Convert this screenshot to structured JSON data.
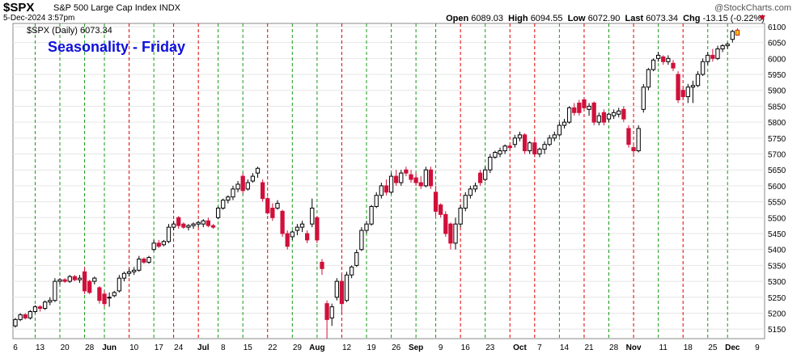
{
  "header": {
    "symbol": "$SPX",
    "name": "S&P 500 Large Cap Index",
    "exchange": "INDX",
    "date": "5-Dec-2024 3:57pm",
    "open_label": "Open",
    "open": "6089.03",
    "high_label": "High",
    "high": "6094.55",
    "low_label": "Low",
    "low": "6072.90",
    "last_label": "Last",
    "last": "6073.34",
    "chg_label": "Chg",
    "chg": "-13.15 (-0.22%)",
    "watermark": "@StockCharts.com"
  },
  "legend": {
    "text": "$SPX (Daily) 6073.34"
  },
  "annotation": "Seasonality - Friday",
  "colors": {
    "up": "#ffffff",
    "down": "#d0103a",
    "outline": "#000000",
    "green_line": "#1a9a1a",
    "red_line": "#e00000",
    "annotation": "#1010dd",
    "grid": "#e6e6e6"
  },
  "chart_data": {
    "type": "candlestick",
    "title": "Seasonality - Friday",
    "y_axis": {
      "side": "right",
      "range": [
        5120,
        6110
      ],
      "ticks": [
        5150,
        5200,
        5250,
        5300,
        5350,
        5400,
        5450,
        5500,
        5550,
        5600,
        5650,
        5700,
        5750,
        5800,
        5850,
        5900,
        5950,
        6000,
        6050,
        6100
      ]
    },
    "x_labels": [
      {
        "label": "6",
        "idx": 0
      },
      {
        "label": "13",
        "idx": 5
      },
      {
        "label": "20",
        "idx": 10
      },
      {
        "label": "28",
        "idx": 15
      },
      {
        "label": "Jun",
        "idx": 19
      },
      {
        "label": "10",
        "idx": 24
      },
      {
        "label": "17",
        "idx": 29
      },
      {
        "label": "24",
        "idx": 33
      },
      {
        "label": "Jul",
        "idx": 38
      },
      {
        "label": "8",
        "idx": 42
      },
      {
        "label": "15",
        "idx": 47
      },
      {
        "label": "22",
        "idx": 52
      },
      {
        "label": "29",
        "idx": 57
      },
      {
        "label": "Aug",
        "idx": 61
      },
      {
        "label": "12",
        "idx": 67
      },
      {
        "label": "19",
        "idx": 72
      },
      {
        "label": "26",
        "idx": 77
      },
      {
        "label": "Sep",
        "idx": 81
      },
      {
        "label": "9",
        "idx": 86
      },
      {
        "label": "16",
        "idx": 91
      },
      {
        "label": "23",
        "idx": 96
      },
      {
        "label": "Oct",
        "idx": 102
      },
      {
        "label": "7",
        "idx": 106
      },
      {
        "label": "14",
        "idx": 111
      },
      {
        "label": "21",
        "idx": 116
      },
      {
        "label": "28",
        "idx": 121
      },
      {
        "label": "Nov",
        "idx": 125
      },
      {
        "label": "11",
        "idx": 131
      },
      {
        "label": "18",
        "idx": 136
      },
      {
        "label": "25",
        "idx": 141
      },
      {
        "label": "Dec",
        "idx": 145
      },
      {
        "label": "9",
        "idx": 150
      }
    ],
    "x_count": 152,
    "friday_lines": [
      {
        "idx": 4,
        "color": "green"
      },
      {
        "idx": 9,
        "color": "green"
      },
      {
        "idx": 14,
        "color": "green"
      },
      {
        "idx": 18,
        "color": "green"
      },
      {
        "idx": 23,
        "color": "red"
      },
      {
        "idx": 28,
        "color": "green"
      },
      {
        "idx": 32,
        "color": "red"
      },
      {
        "idx": 37,
        "color": "red"
      },
      {
        "idx": 41,
        "color": "green"
      },
      {
        "idx": 46,
        "color": "green"
      },
      {
        "idx": 51,
        "color": "red"
      },
      {
        "idx": 56,
        "color": "green"
      },
      {
        "idx": 61,
        "color": "green"
      },
      {
        "idx": 66,
        "color": "red"
      },
      {
        "idx": 71,
        "color": "green"
      },
      {
        "idx": 76,
        "color": "green"
      },
      {
        "idx": 81,
        "color": "green"
      },
      {
        "idx": 85,
        "color": "green"
      },
      {
        "idx": 90,
        "color": "red"
      },
      {
        "idx": 95,
        "color": "green"
      },
      {
        "idx": 100,
        "color": "red"
      },
      {
        "idx": 105,
        "color": "red"
      },
      {
        "idx": 110,
        "color": "green"
      },
      {
        "idx": 115,
        "color": "red"
      },
      {
        "idx": 120,
        "color": "green"
      },
      {
        "idx": 125,
        "color": "red"
      },
      {
        "idx": 130,
        "color": "green"
      },
      {
        "idx": 135,
        "color": "red"
      },
      {
        "idx": 140,
        "color": "green"
      },
      {
        "idx": 144,
        "color": "green"
      }
    ],
    "candles_ohlc": [
      [
        5160,
        5185,
        5155,
        5180
      ],
      [
        5180,
        5200,
        5175,
        5195
      ],
      [
        5195,
        5200,
        5180,
        5185
      ],
      [
        5185,
        5210,
        5180,
        5205
      ],
      [
        5205,
        5225,
        5200,
        5220
      ],
      [
        5220,
        5225,
        5205,
        5215
      ],
      [
        5215,
        5240,
        5210,
        5235
      ],
      [
        5235,
        5250,
        5225,
        5240
      ],
      [
        5240,
        5310,
        5235,
        5300
      ],
      [
        5300,
        5310,
        5290,
        5305
      ],
      [
        5305,
        5310,
        5295,
        5300
      ],
      [
        5300,
        5320,
        5295,
        5315
      ],
      [
        5315,
        5320,
        5300,
        5305
      ],
      [
        5305,
        5320,
        5295,
        5310
      ],
      [
        5330,
        5345,
        5260,
        5270
      ],
      [
        5300,
        5305,
        5260,
        5265
      ],
      [
        5300,
        5315,
        5290,
        5310
      ],
      [
        5280,
        5285,
        5230,
        5240
      ],
      [
        5260,
        5270,
        5220,
        5230
      ],
      [
        5250,
        5265,
        5220,
        5250
      ],
      [
        5255,
        5270,
        5250,
        5265
      ],
      [
        5270,
        5320,
        5265,
        5310
      ],
      [
        5310,
        5330,
        5300,
        5325
      ],
      [
        5325,
        5340,
        5315,
        5330
      ],
      [
        5330,
        5345,
        5320,
        5335
      ],
      [
        5335,
        5380,
        5330,
        5370
      ],
      [
        5370,
        5375,
        5355,
        5360
      ],
      [
        5360,
        5380,
        5355,
        5375
      ],
      [
        5400,
        5430,
        5395,
        5420
      ],
      [
        5420,
        5430,
        5405,
        5410
      ],
      [
        5415,
        5430,
        5410,
        5425
      ],
      [
        5425,
        5480,
        5420,
        5470
      ],
      [
        5470,
        5490,
        5460,
        5480
      ],
      [
        5500,
        5505,
        5465,
        5475
      ],
      [
        5480,
        5485,
        5465,
        5470
      ],
      [
        5470,
        5480,
        5460,
        5475
      ],
      [
        5475,
        5485,
        5465,
        5480
      ],
      [
        5480,
        5490,
        5470,
        5485
      ],
      [
        5480,
        5495,
        5470,
        5490
      ],
      [
        5490,
        5500,
        5470,
        5475
      ],
      [
        5475,
        5480,
        5465,
        5470
      ],
      [
        5500,
        5535,
        5495,
        5530
      ],
      [
        5530,
        5560,
        5525,
        5555
      ],
      [
        5555,
        5570,
        5545,
        5565
      ],
      [
        5565,
        5600,
        5555,
        5590
      ],
      [
        5590,
        5615,
        5580,
        5605
      ],
      [
        5630,
        5640,
        5575,
        5585
      ],
      [
        5590,
        5620,
        5585,
        5610
      ],
      [
        5615,
        5640,
        5610,
        5630
      ],
      [
        5640,
        5660,
        5625,
        5655
      ],
      [
        5610,
        5620,
        5550,
        5560
      ],
      [
        5560,
        5565,
        5510,
        5515
      ],
      [
        5530,
        5545,
        5490,
        5500
      ],
      [
        5530,
        5555,
        5525,
        5545
      ],
      [
        5520,
        5525,
        5440,
        5450
      ],
      [
        5450,
        5460,
        5400,
        5410
      ],
      [
        5440,
        5460,
        5430,
        5455
      ],
      [
        5460,
        5480,
        5445,
        5470
      ],
      [
        5470,
        5490,
        5455,
        5480
      ],
      [
        5450,
        5460,
        5420,
        5430
      ],
      [
        5480,
        5560,
        5470,
        5530
      ],
      [
        5500,
        5505,
        5420,
        5430
      ],
      [
        5360,
        5370,
        5320,
        5340
      ],
      [
        5230,
        5240,
        5120,
        5180
      ],
      [
        5185,
        5230,
        5160,
        5220
      ],
      [
        5250,
        5310,
        5240,
        5300
      ],
      [
        5300,
        5320,
        5200,
        5230
      ],
      [
        5240,
        5330,
        5235,
        5320
      ],
      [
        5320,
        5350,
        5310,
        5345
      ],
      [
        5350,
        5400,
        5345,
        5390
      ],
      [
        5400,
        5470,
        5395,
        5460
      ],
      [
        5460,
        5490,
        5450,
        5480
      ],
      [
        5480,
        5540,
        5475,
        5535
      ],
      [
        5535,
        5580,
        5530,
        5570
      ],
      [
        5570,
        5610,
        5560,
        5600
      ],
      [
        5600,
        5620,
        5570,
        5580
      ],
      [
        5580,
        5640,
        5575,
        5630
      ],
      [
        5630,
        5650,
        5600,
        5610
      ],
      [
        5610,
        5650,
        5600,
        5640
      ],
      [
        5650,
        5660,
        5630,
        5640
      ],
      [
        5635,
        5650,
        5610,
        5620
      ],
      [
        5625,
        5640,
        5600,
        5610
      ],
      [
        5610,
        5630,
        5590,
        5600
      ],
      [
        5600,
        5660,
        5595,
        5650
      ],
      [
        5650,
        5660,
        5590,
        5600
      ],
      [
        5580,
        5600,
        5505,
        5520
      ],
      [
        5540,
        5545,
        5500,
        5510
      ],
      [
        5510,
        5520,
        5440,
        5450
      ],
      [
        5480,
        5485,
        5400,
        5420
      ],
      [
        5420,
        5500,
        5400,
        5480
      ],
      [
        5480,
        5540,
        5470,
        5530
      ],
      [
        5530,
        5580,
        5520,
        5570
      ],
      [
        5570,
        5600,
        5560,
        5590
      ],
      [
        5590,
        5610,
        5580,
        5600
      ],
      [
        5640,
        5650,
        5600,
        5610
      ],
      [
        5620,
        5660,
        5615,
        5650
      ],
      [
        5650,
        5700,
        5640,
        5690
      ],
      [
        5690,
        5710,
        5685,
        5705
      ],
      [
        5700,
        5720,
        5690,
        5710
      ],
      [
        5710,
        5730,
        5700,
        5725
      ],
      [
        5725,
        5730,
        5710,
        5720
      ],
      [
        5730,
        5760,
        5720,
        5750
      ],
      [
        5750,
        5770,
        5740,
        5760
      ],
      [
        5760,
        5765,
        5700,
        5710
      ],
      [
        5710,
        5740,
        5700,
        5735
      ],
      [
        5735,
        5750,
        5690,
        5700
      ],
      [
        5700,
        5720,
        5690,
        5715
      ],
      [
        5715,
        5740,
        5700,
        5730
      ],
      [
        5730,
        5760,
        5725,
        5750
      ],
      [
        5750,
        5770,
        5740,
        5760
      ],
      [
        5760,
        5800,
        5755,
        5790
      ],
      [
        5790,
        5810,
        5780,
        5800
      ],
      [
        5800,
        5850,
        5795,
        5845
      ],
      [
        5845,
        5860,
        5820,
        5830
      ],
      [
        5860,
        5870,
        5820,
        5830
      ],
      [
        5870,
        5875,
        5840,
        5845
      ],
      [
        5840,
        5860,
        5820,
        5850
      ],
      [
        5860,
        5865,
        5790,
        5800
      ],
      [
        5800,
        5830,
        5790,
        5820
      ],
      [
        5830,
        5840,
        5790,
        5800
      ],
      [
        5810,
        5830,
        5800,
        5825
      ],
      [
        5820,
        5840,
        5810,
        5830
      ],
      [
        5825,
        5845,
        5815,
        5835
      ],
      [
        5840,
        5850,
        5800,
        5810
      ],
      [
        5780,
        5790,
        5720,
        5730
      ],
      [
        5720,
        5730,
        5700,
        5710
      ],
      [
        5710,
        5790,
        5705,
        5780
      ],
      [
        5840,
        5920,
        5830,
        5910
      ],
      [
        5910,
        5970,
        5900,
        5965
      ],
      [
        5965,
        6000,
        5960,
        5995
      ],
      [
        6000,
        6020,
        5990,
        6010
      ],
      [
        6005,
        6010,
        5980,
        5990
      ],
      [
        5990,
        6010,
        5980,
        6000
      ],
      [
        5985,
        5995,
        5960,
        5970
      ],
      [
        5950,
        5960,
        5860,
        5870
      ],
      [
        5900,
        5910,
        5870,
        5880
      ],
      [
        5880,
        5920,
        5860,
        5910
      ],
      [
        5910,
        5930,
        5860,
        5915
      ],
      [
        5915,
        5960,
        5910,
        5950
      ],
      [
        5950,
        6000,
        5945,
        5990
      ],
      [
        5990,
        6020,
        5980,
        6010
      ],
      [
        6010,
        6030,
        5990,
        6000
      ],
      [
        6000,
        6040,
        5995,
        6030
      ],
      [
        6030,
        6045,
        6020,
        6040
      ],
      [
        6040,
        6050,
        6030,
        6045
      ],
      [
        6060,
        6090,
        6050,
        6085
      ],
      [
        6089.03,
        6094.55,
        6072.9,
        6073.34
      ]
    ]
  }
}
